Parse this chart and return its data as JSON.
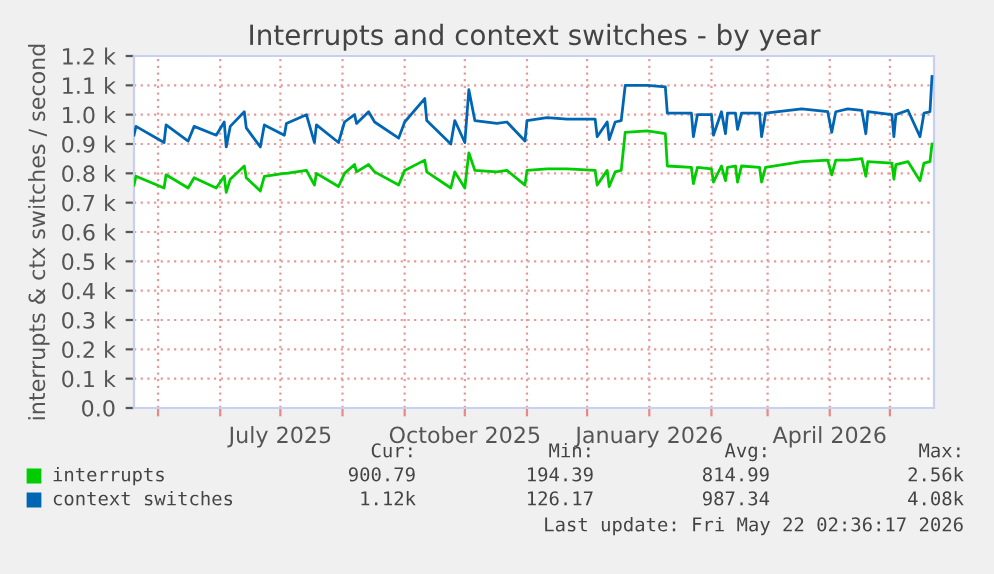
{
  "chart_data": {
    "type": "line",
    "title": "Interrupts and context switches - by year",
    "ylabel": "interrupts & ctx switches / second",
    "x": [
      "2025-04-19",
      "2025-04-20",
      "2025-05-04",
      "2025-05-05",
      "2025-05-16",
      "2025-05-19",
      "2025-05-30",
      "2025-06-03",
      "2025-06-04",
      "2025-06-06",
      "2025-06-13",
      "2025-06-14",
      "2025-06-21",
      "2025-06-23",
      "2025-07-03",
      "2025-07-04",
      "2025-07-14",
      "2025-07-18",
      "2025-07-19",
      "2025-07-30",
      "2025-08-02",
      "2025-08-07",
      "2025-08-08",
      "2025-08-14",
      "2025-08-17",
      "2025-08-29",
      "2025-09-01",
      "2025-09-11",
      "2025-09-12",
      "2025-09-24",
      "2025-09-26",
      "2025-10-01",
      "2025-10-03",
      "2025-10-06",
      "2025-10-17",
      "2025-10-22",
      "2025-10-31",
      "2025-11-01",
      "2025-11-11",
      "2025-11-21",
      "2025-12-05",
      "2025-12-06",
      "2025-12-11",
      "2025-12-12",
      "2025-12-15",
      "2025-12-18",
      "2025-12-20",
      "2025-12-31",
      "2026-01-09",
      "2026-01-10",
      "2026-01-22",
      "2026-01-23",
      "2026-01-25",
      "2026-02-01",
      "2026-02-02",
      "2026-02-06",
      "2026-02-08",
      "2026-02-09",
      "2026-02-13",
      "2026-02-14",
      "2026-02-16",
      "2026-02-25",
      "2026-02-26",
      "2026-02-28",
      "2026-03-18",
      "2026-03-31",
      "2026-04-02",
      "2026-04-04",
      "2026-04-10",
      "2026-04-17",
      "2026-04-19",
      "2026-04-20",
      "2026-05-02",
      "2026-05-03",
      "2026-05-04",
      "2026-05-10",
      "2026-05-16",
      "2026-05-18",
      "2026-05-21",
      "2026-05-22"
    ],
    "series": [
      {
        "name": "interrupts",
        "color": "#00cc00",
        "values": [
          760,
          790,
          750,
          795,
          750,
          785,
          750,
          790,
          735,
          780,
          825,
          785,
          740,
          790,
          800,
          800,
          810,
          760,
          800,
          755,
          800,
          830,
          805,
          830,
          805,
          760,
          810,
          845,
          805,
          750,
          805,
          750,
          870,
          810,
          805,
          810,
          760,
          810,
          815,
          815,
          810,
          760,
          810,
          755,
          805,
          810,
          940,
          945,
          935,
          825,
          820,
          765,
          820,
          815,
          770,
          825,
          775,
          820,
          825,
          770,
          825,
          820,
          770,
          820,
          840,
          845,
          795,
          845,
          845,
          850,
          790,
          840,
          835,
          780,
          830,
          840,
          775,
          835,
          840,
          900
        ]
      },
      {
        "name": "context switches",
        "color": "#0066b3",
        "values": [
          930,
          960,
          905,
          965,
          910,
          960,
          930,
          975,
          890,
          960,
          1010,
          955,
          890,
          965,
          930,
          970,
          1000,
          905,
          965,
          905,
          975,
          1000,
          970,
          1010,
          975,
          920,
          975,
          1055,
          980,
          900,
          980,
          905,
          1085,
          980,
          970,
          975,
          910,
          980,
          990,
          985,
          985,
          925,
          975,
          915,
          975,
          980,
          1100,
          1100,
          1095,
          1005,
          1005,
          925,
          1000,
          1000,
          930,
          1010,
          935,
          1005,
          1005,
          950,
          1005,
          1005,
          925,
          1005,
          1020,
          1010,
          940,
          1010,
          1020,
          1015,
          935,
          1010,
          1000,
          925,
          1000,
          1015,
          925,
          1005,
          1010,
          1130
        ]
      }
    ],
    "xlim": [
      "2025-04-19",
      "2026-05-23"
    ],
    "xticks": [
      {
        "value": "2025-05-01",
        "label": null
      },
      {
        "value": "2025-06-01",
        "label": null
      },
      {
        "value": "2025-07-01",
        "label": "July 2025"
      },
      {
        "value": "2025-08-01",
        "label": null
      },
      {
        "value": "2025-09-01",
        "label": null
      },
      {
        "value": "2025-10-01",
        "label": "October 2025"
      },
      {
        "value": "2025-11-01",
        "label": null
      },
      {
        "value": "2025-12-01",
        "label": null
      },
      {
        "value": "2026-01-01",
        "label": "January 2026"
      },
      {
        "value": "2026-02-01",
        "label": null
      },
      {
        "value": "2026-03-01",
        "label": null
      },
      {
        "value": "2026-04-01",
        "label": "April 2026"
      },
      {
        "value": "2026-05-01",
        "label": null
      }
    ],
    "ylim": [
      0,
      1200
    ],
    "yticks": [
      {
        "value": 0,
        "label": "0.0"
      },
      {
        "value": 100,
        "label": "0.1 k"
      },
      {
        "value": 200,
        "label": "0.2 k"
      },
      {
        "value": 300,
        "label": "0.3 k"
      },
      {
        "value": 400,
        "label": "0.4 k"
      },
      {
        "value": 500,
        "label": "0.5 k"
      },
      {
        "value": 600,
        "label": "0.6 k"
      },
      {
        "value": 700,
        "label": "0.7 k"
      },
      {
        "value": 800,
        "label": "0.8 k"
      },
      {
        "value": 900,
        "label": "0.9 k"
      },
      {
        "value": 1000,
        "label": "1.0 k"
      },
      {
        "value": 1100,
        "label": "1.1 k"
      },
      {
        "value": 1200,
        "label": "1.2 k"
      }
    ],
    "grid": true,
    "legend": "bottom",
    "marker": "none",
    "line_style": "solid",
    "annotations": [
      "Cur:",
      "Min:",
      "Avg:",
      "Max:",
      "900.79",
      "194.39",
      "814.99",
      "2.56k",
      "1.12k",
      "126.17",
      "987.34",
      "4.08k",
      "Last update: Fri May 22 02:36:17 2026"
    ]
  }
}
